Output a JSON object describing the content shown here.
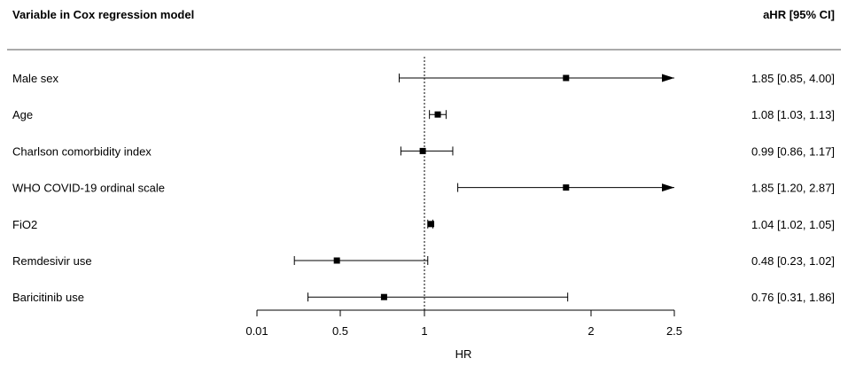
{
  "chart_data": {
    "type": "forest",
    "header_left": "Variable in Cox regression model",
    "header_right": "aHR [95% CI]",
    "xlabel": "HR",
    "x_axis_ticks": [
      "0.01",
      "0.5",
      "1",
      "2",
      "2.5"
    ],
    "reference_line": 1,
    "rows": [
      {
        "label": "Male sex",
        "hr": 1.85,
        "lower": 0.85,
        "upper": 4.0,
        "text": "1.85 [0.85, 4.00]",
        "arrow_right": true
      },
      {
        "label": "Age",
        "hr": 1.08,
        "lower": 1.03,
        "upper": 1.13,
        "text": "1.08 [1.03, 1.13]",
        "arrow_right": false
      },
      {
        "label": "Charlson comorbidity index",
        "hr": 0.99,
        "lower": 0.86,
        "upper": 1.17,
        "text": "0.99 [0.86, 1.17]",
        "arrow_right": false
      },
      {
        "label": "WHO COVID-19 ordinal scale",
        "hr": 1.85,
        "lower": 1.2,
        "upper": 2.87,
        "text": "1.85 [1.20, 2.87]",
        "arrow_right": true
      },
      {
        "label": "FiO2",
        "hr": 1.04,
        "lower": 1.02,
        "upper": 1.05,
        "text": "1.04 [1.02, 1.05]",
        "arrow_right": false
      },
      {
        "label": "Remdesivir use",
        "hr": 0.48,
        "lower": 0.23,
        "upper": 1.02,
        "text": "0.48 [0.23, 1.02]",
        "arrow_right": false
      },
      {
        "label": "Baricitinib use",
        "hr": 0.76,
        "lower": 0.31,
        "upper": 1.86,
        "text": "0.76 [0.31, 1.86]",
        "arrow_right": false
      }
    ]
  }
}
